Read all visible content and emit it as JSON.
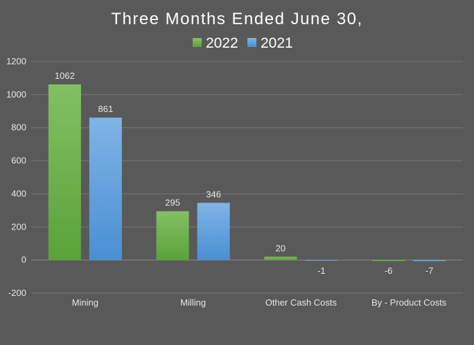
{
  "chart_data": {
    "type": "bar",
    "title": "Three Months Ended June 30,",
    "categories": [
      "Mining",
      "Milling",
      "Other Cash Costs",
      "By - Product Costs"
    ],
    "series": [
      {
        "name": "2022",
        "values": [
          1062,
          295,
          20,
          -6
        ],
        "labels": [
          "1062",
          "295",
          "20",
          "-6"
        ]
      },
      {
        "name": "2021",
        "values": [
          861,
          346,
          -1,
          -7
        ],
        "labels": [
          "861",
          "346",
          "-1",
          "-7"
        ]
      }
    ],
    "ylim": [
      -200,
      1200
    ],
    "yticks": [
      "-200",
      "0",
      "200",
      "400",
      "600",
      "800",
      "1000",
      "1200"
    ],
    "grid": true,
    "legend": "top-center",
    "colors": {
      "2022": "#6ab04c",
      "2021": "#5b9bd5",
      "background": "#595959"
    }
  }
}
